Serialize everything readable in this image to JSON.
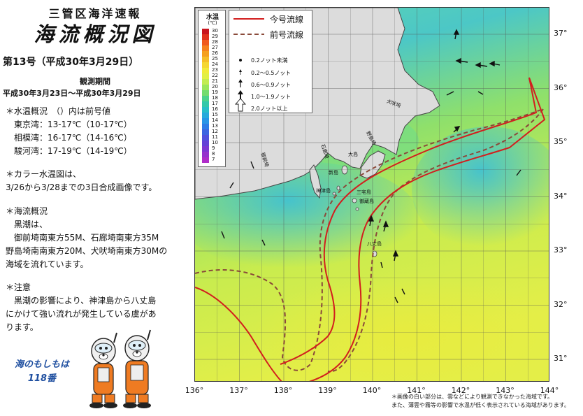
{
  "header": {
    "line1": "三管区海洋速報",
    "line2": "海流概況図",
    "issue": "第13号（平成30年3月29日）",
    "obs_label": "観測期間",
    "obs_period": "平成30年3月23日～平成30年3月29日"
  },
  "water_temp": {
    "title": "＊水温概況　（）内は前号値",
    "rows": [
      "東京湾：13-17℃（10-17℃）",
      "相模湾：16-17℃（14-16℃）",
      "駿河湾：17-19℃（14-19℃）"
    ]
  },
  "color_map": {
    "line1": "＊カラー水温図は、",
    "line2": "3/26から3/28までの3日合成画像です。"
  },
  "current": {
    "title": "＊海流概況",
    "line1": "黒潮は、",
    "line2": "御前埼南東方55M、石廊埼南東方35M",
    "line3": "野島埼南南東方20M、犬吠埼南東方30Mの",
    "line4": "海域を流れています。"
  },
  "caution": {
    "title": "＊注意",
    "line1": "黒潮の影響により、神津島から八丈島",
    "line2": "にかけて強い流れが発生している虞があ",
    "line3": "ります。"
  },
  "mascot": {
    "line1": "海のもしもは",
    "line2": "118番"
  },
  "scale": {
    "title": "水温",
    "unit": "(℃)",
    "levels": [
      {
        "label": "30",
        "color": "#c8141e"
      },
      {
        "label": "29",
        "color": "#e0321e"
      },
      {
        "label": "28",
        "color": "#f05a1e"
      },
      {
        "label": "27",
        "color": "#f5821e"
      },
      {
        "label": "26",
        "color": "#f5a01e"
      },
      {
        "label": "25",
        "color": "#f5be28"
      },
      {
        "label": "24",
        "color": "#f5d732"
      },
      {
        "label": "23",
        "color": "#f0eb3c"
      },
      {
        "label": "22",
        "color": "#e1f046"
      },
      {
        "label": "21",
        "color": "#c3ec50"
      },
      {
        "label": "20",
        "color": "#9be65a"
      },
      {
        "label": "19",
        "color": "#73dc6e"
      },
      {
        "label": "18",
        "color": "#4bd28c"
      },
      {
        "label": "17",
        "color": "#32c8aa"
      },
      {
        "label": "16",
        "color": "#28bec8"
      },
      {
        "label": "15",
        "color": "#28aadc"
      },
      {
        "label": "14",
        "color": "#2896e6"
      },
      {
        "label": "13",
        "color": "#2d7de6"
      },
      {
        "label": "12",
        "color": "#3c64e1"
      },
      {
        "label": "11",
        "color": "#5050dc"
      },
      {
        "label": "10",
        "color": "#6441d7"
      },
      {
        "label": "9",
        "color": "#7d37d2"
      },
      {
        "label": "8",
        "color": "#9632cd"
      },
      {
        "label": "7",
        "color": "#af2dc8"
      }
    ]
  },
  "legend": {
    "current_label": "今号流線",
    "previous_label": "前号流線",
    "current_color": "#d21e1e",
    "previous_color": "#8a4a3a",
    "speeds": [
      "0.2ノット未満",
      "0.2～0.5ノット",
      "0.6～0.9ノット",
      "1.0～1.9ノット",
      "2.0ノット以上"
    ]
  },
  "places": {
    "omaezaki": "御前埼",
    "irozaki": "石廊埼",
    "nojimazaki": "野島埼",
    "inubozaki": "犬吠埼",
    "oshima": "大島",
    "niijima": "新島",
    "kozushima": "神津島",
    "miyakejima": "三宅島",
    "mikurajima": "御蔵島",
    "hachijojima": "八丈島"
  },
  "axis": {
    "lat": [
      "37°",
      "36°",
      "35°",
      "34°",
      "33°",
      "32°",
      "31°"
    ],
    "lon": [
      "136°",
      "137°",
      "138°",
      "139°",
      "140°",
      "141°",
      "142°",
      "143°",
      "144°"
    ]
  },
  "footnotes": {
    "line1": "＊画像の白い部分は、雲などにより観測できなかった海域です。",
    "line2": "また、薄雲や霧等の影響で水温が低く表示されている海域があります。"
  }
}
